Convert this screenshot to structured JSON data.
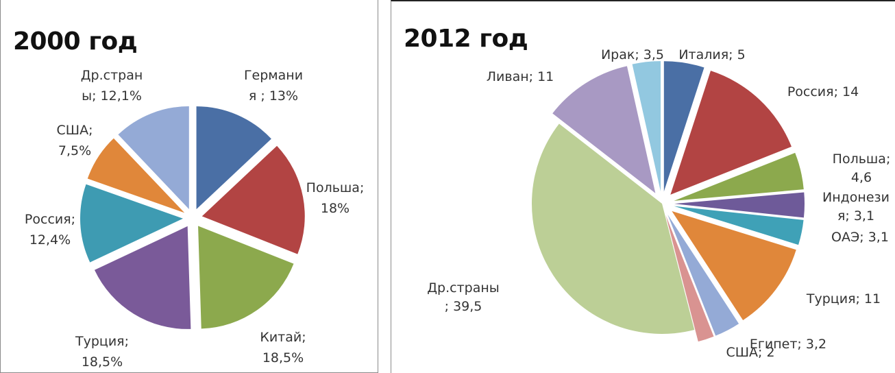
{
  "chart_data": [
    {
      "type": "pie",
      "title": "2000 год",
      "exploded": true,
      "units": "%",
      "categories": [
        "Германия",
        "Польша",
        "Китай",
        "Турция",
        "Россия",
        "США",
        "Др.страны"
      ],
      "values": [
        13,
        18,
        18.5,
        18.5,
        12.4,
        7.5,
        12.1
      ],
      "colors": [
        "#4a6fa5",
        "#b24443",
        "#8ca94d",
        "#7a5a99",
        "#3e9bb2",
        "#e0873a",
        "#94aad6"
      ],
      "labels": [
        [
          "Германи",
          "я ; 13%"
        ],
        [
          "Польша;",
          "18%"
        ],
        [
          "Китай;",
          "18,5%"
        ],
        [
          "Турция;",
          "18,5%"
        ],
        [
          "Россия;",
          "12,4%"
        ],
        [
          "США;",
          "7,5%"
        ],
        [
          "Др.стран",
          "ы; 12,1%"
        ]
      ]
    },
    {
      "type": "pie",
      "title": "2012 год",
      "exploded": true,
      "categories": [
        "Италия",
        "Россия",
        "Польша",
        "Индонезия",
        "ОАЭ",
        "Турция",
        "Египет",
        "США",
        "Др.страны",
        "Ливан",
        "Ирак"
      ],
      "values": [
        5,
        14,
        4.6,
        3.1,
        3.1,
        11,
        3.2,
        2,
        39.5,
        11,
        3.5
      ],
      "colors": [
        "#4a6fa5",
        "#b24443",
        "#8ca94d",
        "#6e5a99",
        "#3fa1b7",
        "#e0873a",
        "#94aad6",
        "#d99391",
        "#bccf96",
        "#a899c3",
        "#92c8e0"
      ],
      "labels": [
        [
          "Италия; 5"
        ],
        [
          "Россия; 14"
        ],
        [
          "Польша;",
          "4,6"
        ],
        [
          "Индонези",
          "я; 3,1"
        ],
        [
          "ОАЭ; 3,1"
        ],
        [
          "Турция; 11"
        ],
        [
          "Египет; 3,2"
        ],
        [
          "США; 2"
        ],
        [
          "Др.страны",
          "; 39,5"
        ],
        [
          "Ливан; 11"
        ],
        [
          "Ирак; 3,5"
        ]
      ]
    }
  ]
}
